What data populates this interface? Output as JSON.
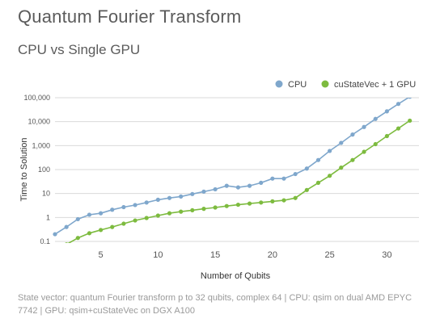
{
  "page": {
    "title": "Quantum Fourier Transform",
    "subtitle": "CPU vs Single GPU",
    "caption": "State vector: quantum Fourier transform p to 32 qubits, complex 64 | CPU: qsim on dual AMD EPYC 7742 | GPU: qsim+cuStateVec on DGX A100"
  },
  "chart_data": {
    "type": "line",
    "title": "Quantum Fourier Transform",
    "subtitle": "CPU vs Single GPU",
    "xlabel": "Number of Qubits",
    "ylabel": "Time to Solution",
    "yscale": "log",
    "xlim": [
      1,
      32.8
    ],
    "ylim": [
      0.1,
      100000
    ],
    "x_ticks": [
      "5",
      "10",
      "15",
      "20",
      "25",
      "30"
    ],
    "y_ticks": [
      "0.1",
      "1",
      "10",
      "100",
      "1,000",
      "10,000",
      "100,000"
    ],
    "grid": "horizontal",
    "legend_position": "top-right",
    "series": [
      {
        "name": "CPU",
        "color": "#7fa7cc",
        "x": [
          1,
          2,
          3,
          4,
          5,
          6,
          7,
          8,
          9,
          10,
          11,
          12,
          13,
          14,
          15,
          16,
          17,
          18,
          19,
          20,
          21,
          22,
          23,
          24,
          25,
          26,
          27,
          28,
          29,
          30,
          31,
          32
        ],
        "values": [
          0.2,
          0.4,
          0.85,
          1.3,
          1.5,
          2.1,
          2.7,
          3.3,
          4.2,
          5.5,
          6.5,
          7.5,
          9.5,
          12,
          15,
          21,
          18,
          21,
          28,
          42,
          42,
          65,
          110,
          250,
          600,
          1300,
          2900,
          6000,
          13000,
          27000,
          55000,
          110000
        ]
      },
      {
        "name": "cuStateVec + 1 GPU",
        "color": "#7dbb3f",
        "x": [
          2,
          3,
          4,
          5,
          6,
          7,
          8,
          9,
          10,
          11,
          12,
          13,
          14,
          15,
          16,
          17,
          18,
          19,
          20,
          21,
          22,
          23,
          24,
          25,
          26,
          27,
          28,
          29,
          30,
          31,
          32
        ],
        "values": [
          0.075,
          0.14,
          0.22,
          0.3,
          0.4,
          0.55,
          0.75,
          0.95,
          1.2,
          1.5,
          1.75,
          2.0,
          2.3,
          2.6,
          3.0,
          3.4,
          3.8,
          4.2,
          4.7,
          5.2,
          6.5,
          14,
          28,
          55,
          120,
          250,
          550,
          1150,
          2500,
          5200,
          11000
        ]
      }
    ]
  }
}
